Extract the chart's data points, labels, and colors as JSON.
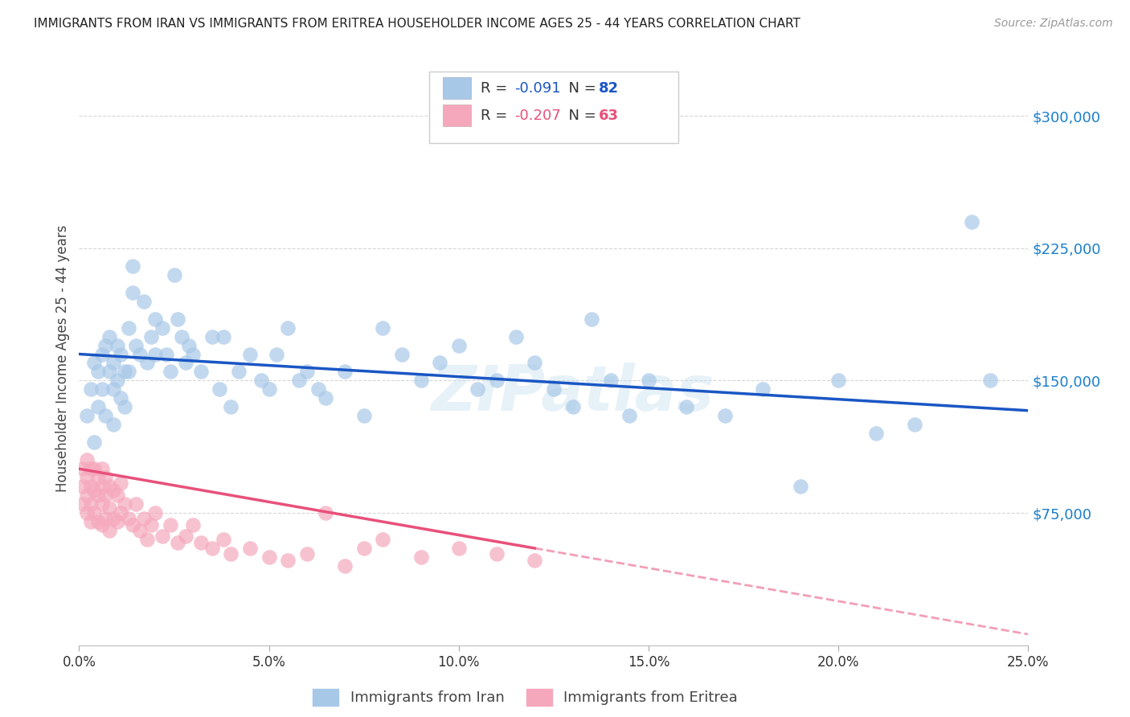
{
  "title": "IMMIGRANTS FROM IRAN VS IMMIGRANTS FROM ERITREA HOUSEHOLDER INCOME AGES 25 - 44 YEARS CORRELATION CHART",
  "source": "Source: ZipAtlas.com",
  "ylabel": "Householder Income Ages 25 - 44 years",
  "xlabel_ticks": [
    "0.0%",
    "5.0%",
    "10.0%",
    "15.0%",
    "20.0%",
    "25.0%"
  ],
  "xlabel_vals": [
    0.0,
    0.05,
    0.1,
    0.15,
    0.2,
    0.25
  ],
  "ytick_labels": [
    "$75,000",
    "$150,000",
    "$225,000",
    "$300,000"
  ],
  "ytick_vals": [
    75000,
    150000,
    225000,
    300000
  ],
  "xmin": 0.0,
  "xmax": 0.25,
  "ymin": 0,
  "ymax": 325000,
  "iran_color": "#a8c8e8",
  "eritrea_color": "#f5a8bc",
  "iran_line_color": "#1a56c4",
  "eritrea_line_color": "#e8507a",
  "iran_R": -0.091,
  "iran_N": 82,
  "eritrea_R": -0.207,
  "eritrea_N": 63,
  "watermark": "ZIPatlas",
  "background_color": "#ffffff",
  "grid_color": "#cccccc",
  "iran_x": [
    0.002,
    0.003,
    0.004,
    0.004,
    0.005,
    0.005,
    0.006,
    0.006,
    0.007,
    0.007,
    0.008,
    0.008,
    0.009,
    0.009,
    0.009,
    0.01,
    0.01,
    0.011,
    0.011,
    0.012,
    0.012,
    0.013,
    0.013,
    0.014,
    0.014,
    0.015,
    0.016,
    0.017,
    0.018,
    0.019,
    0.02,
    0.02,
    0.022,
    0.023,
    0.024,
    0.025,
    0.026,
    0.027,
    0.028,
    0.029,
    0.03,
    0.032,
    0.035,
    0.037,
    0.038,
    0.04,
    0.042,
    0.045,
    0.048,
    0.05,
    0.052,
    0.055,
    0.058,
    0.06,
    0.063,
    0.065,
    0.07,
    0.075,
    0.08,
    0.085,
    0.09,
    0.095,
    0.1,
    0.105,
    0.11,
    0.115,
    0.12,
    0.125,
    0.13,
    0.135,
    0.14,
    0.145,
    0.15,
    0.16,
    0.17,
    0.18,
    0.19,
    0.2,
    0.21,
    0.22,
    0.235,
    0.24
  ],
  "iran_y": [
    130000,
    145000,
    160000,
    115000,
    155000,
    135000,
    165000,
    145000,
    170000,
    130000,
    175000,
    155000,
    160000,
    145000,
    125000,
    170000,
    150000,
    165000,
    140000,
    155000,
    135000,
    180000,
    155000,
    215000,
    200000,
    170000,
    165000,
    195000,
    160000,
    175000,
    185000,
    165000,
    180000,
    165000,
    155000,
    210000,
    185000,
    175000,
    160000,
    170000,
    165000,
    155000,
    175000,
    145000,
    175000,
    135000,
    155000,
    165000,
    150000,
    145000,
    165000,
    180000,
    150000,
    155000,
    145000,
    140000,
    155000,
    130000,
    180000,
    165000,
    150000,
    160000,
    170000,
    145000,
    150000,
    175000,
    160000,
    145000,
    135000,
    185000,
    150000,
    130000,
    150000,
    135000,
    130000,
    145000,
    90000,
    150000,
    120000,
    125000,
    240000,
    150000
  ],
  "eritrea_x": [
    0.001,
    0.001,
    0.001,
    0.002,
    0.002,
    0.002,
    0.002,
    0.003,
    0.003,
    0.003,
    0.003,
    0.004,
    0.004,
    0.004,
    0.005,
    0.005,
    0.005,
    0.006,
    0.006,
    0.006,
    0.006,
    0.007,
    0.007,
    0.007,
    0.008,
    0.008,
    0.008,
    0.009,
    0.009,
    0.01,
    0.01,
    0.011,
    0.011,
    0.012,
    0.013,
    0.014,
    0.015,
    0.016,
    0.017,
    0.018,
    0.019,
    0.02,
    0.022,
    0.024,
    0.026,
    0.028,
    0.03,
    0.032,
    0.035,
    0.038,
    0.04,
    0.045,
    0.05,
    0.055,
    0.06,
    0.065,
    0.07,
    0.075,
    0.08,
    0.09,
    0.1,
    0.11,
    0.12
  ],
  "eritrea_y": [
    100000,
    90000,
    80000,
    105000,
    95000,
    85000,
    75000,
    100000,
    90000,
    80000,
    70000,
    100000,
    88000,
    75000,
    95000,
    85000,
    70000,
    100000,
    90000,
    80000,
    68000,
    95000,
    85000,
    72000,
    90000,
    78000,
    65000,
    88000,
    72000,
    85000,
    70000,
    92000,
    75000,
    80000,
    72000,
    68000,
    80000,
    65000,
    72000,
    60000,
    68000,
    75000,
    62000,
    68000,
    58000,
    62000,
    68000,
    58000,
    55000,
    60000,
    52000,
    55000,
    50000,
    48000,
    52000,
    75000,
    45000,
    55000,
    60000,
    50000,
    55000,
    52000,
    48000
  ]
}
